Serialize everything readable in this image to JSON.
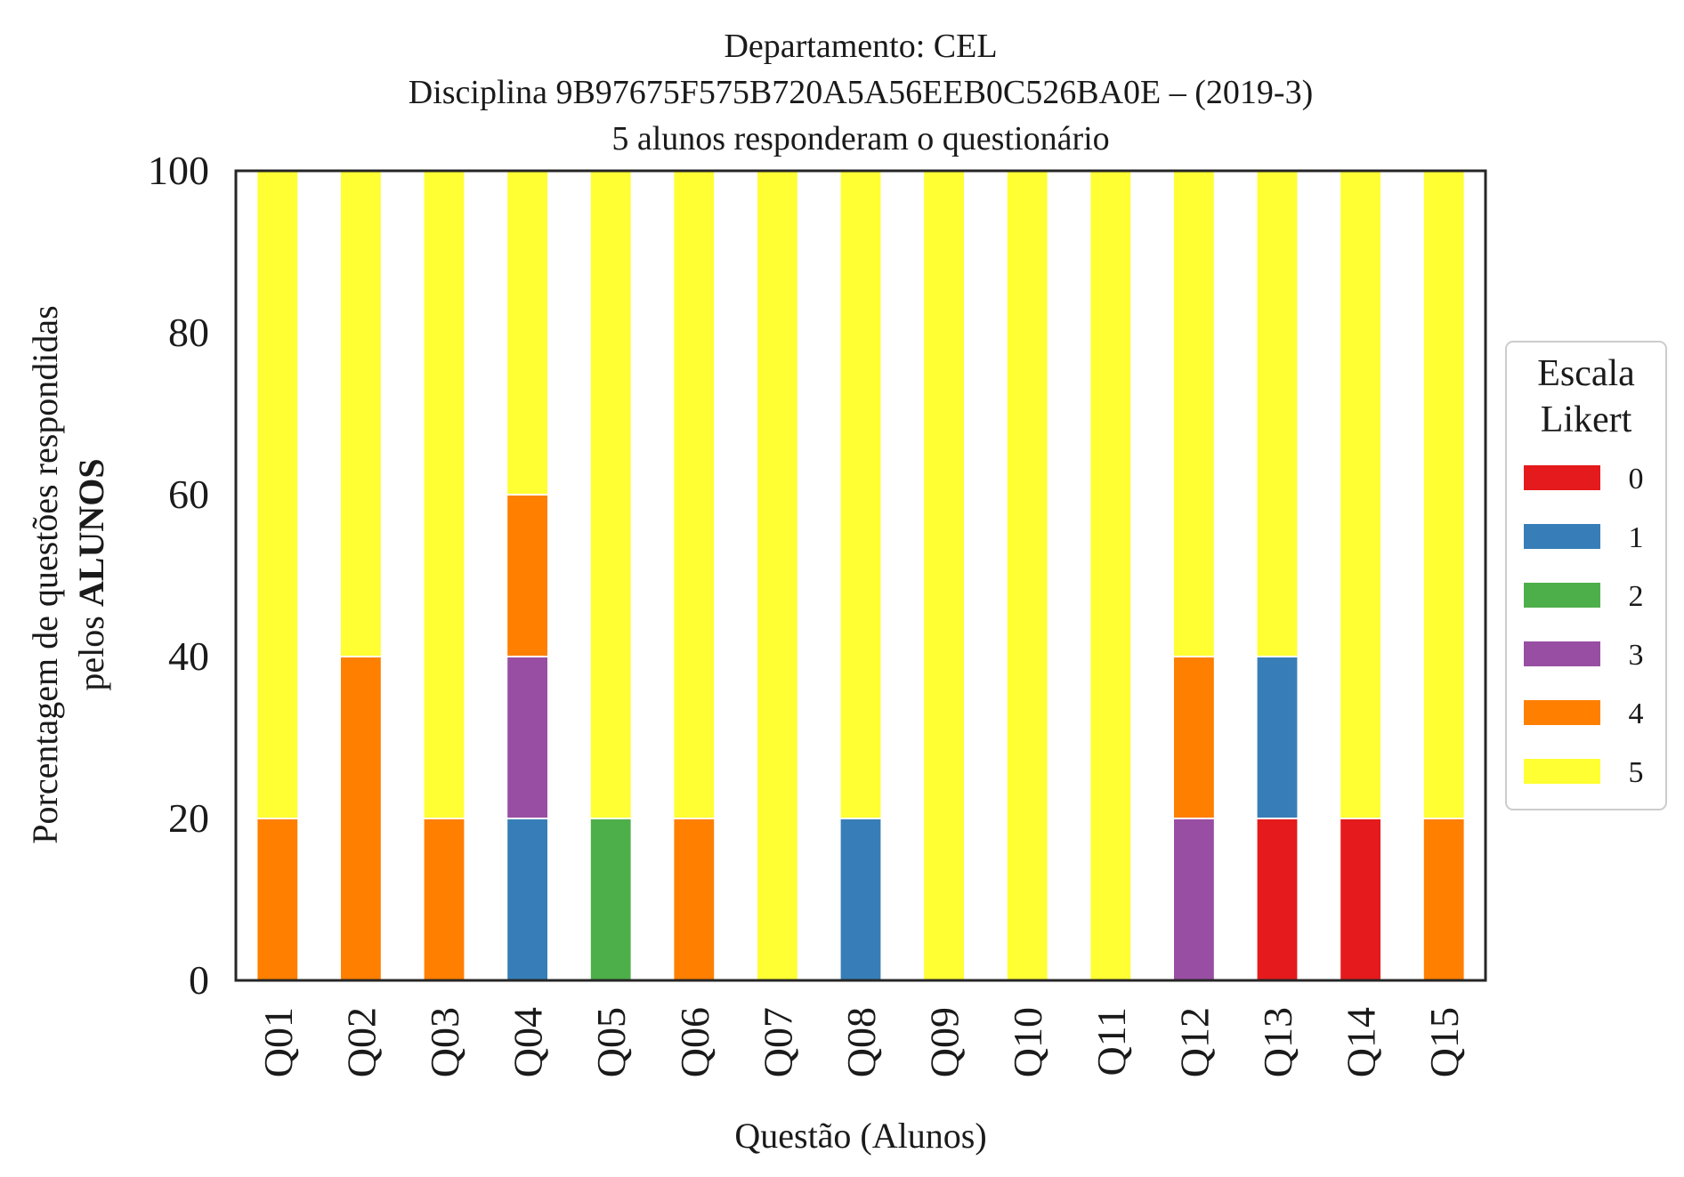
{
  "chart_data": {
    "type": "bar",
    "stacked": true,
    "title_lines": [
      "Departamento: CEL",
      "Disciplina 9B97675F575B720A5A56EEB0C526BA0E – (2019-3)",
      "5 alunos responderam o questionário"
    ],
    "xlabel": "Questão (Alunos)",
    "ylabel_line1": "Porcentagem de questões respondidas",
    "ylabel_line2_prefix": "pelos ",
    "ylabel_line2_bold": "ALUNOS",
    "ylim": [
      0,
      100
    ],
    "yticks": [
      "0",
      "20",
      "40",
      "60",
      "80",
      "100"
    ],
    "categories": [
      "Q01",
      "Q02",
      "Q03",
      "Q04",
      "Q05",
      "Q06",
      "Q07",
      "Q08",
      "Q09",
      "Q10",
      "Q11",
      "Q12",
      "Q13",
      "Q14",
      "Q15"
    ],
    "legend": {
      "title_lines": [
        "Escala",
        "Likert"
      ],
      "placement": "right-outside"
    },
    "series": [
      {
        "name": "0",
        "color": "#e41a1c",
        "values": [
          0,
          0,
          0,
          0,
          0,
          0,
          0,
          0,
          0,
          0,
          0,
          0,
          20,
          20,
          0
        ]
      },
      {
        "name": "1",
        "color": "#377eb8",
        "values": [
          0,
          0,
          0,
          20,
          0,
          0,
          0,
          20,
          0,
          0,
          0,
          0,
          20,
          0,
          0
        ]
      },
      {
        "name": "2",
        "color": "#4daf4a",
        "values": [
          0,
          0,
          0,
          0,
          20,
          0,
          0,
          0,
          0,
          0,
          0,
          0,
          0,
          0,
          0
        ]
      },
      {
        "name": "3",
        "color": "#984ea3",
        "values": [
          0,
          0,
          0,
          20,
          0,
          0,
          0,
          0,
          0,
          0,
          0,
          20,
          0,
          0,
          0
        ]
      },
      {
        "name": "4",
        "color": "#ff7f00",
        "values": [
          20,
          40,
          20,
          20,
          0,
          20,
          0,
          0,
          0,
          0,
          0,
          20,
          0,
          0,
          20
        ]
      },
      {
        "name": "5",
        "color": "#ffff33",
        "values": [
          80,
          60,
          80,
          40,
          80,
          80,
          100,
          80,
          100,
          100,
          100,
          60,
          60,
          80,
          80
        ]
      }
    ]
  }
}
